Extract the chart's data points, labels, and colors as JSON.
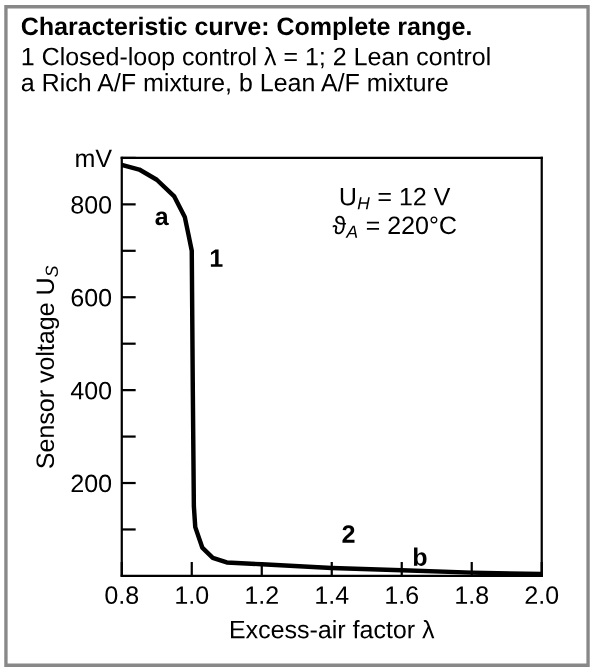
{
  "chart_data": {
    "type": "line",
    "title": "Characteristic curve: Complete range.",
    "subtitle": "1 Closed-loop control λ = 1; 2 Lean control\na Rich A/F mixture, b Lean A/F mixture",
    "xlabel": "Excess-air factor λ",
    "ylabel": "Sensor voltage U$_{S}$",
    "x": [
      0.8,
      0.85,
      0.9,
      0.95,
      0.98,
      0.99,
      1.0,
      1.003,
      1.006,
      1.01,
      1.03,
      1.06,
      1.1,
      1.2,
      1.4,
      1.6,
      1.8,
      2.0
    ],
    "series": [
      {
        "color": "#000000",
        "values": [
          885,
          875,
          853,
          817,
          773,
          737,
          700,
          400,
          150,
          105,
          61,
          39,
          29,
          25,
          17,
          12,
          7,
          4
        ]
      }
    ],
    "xlim": [
      0.8,
      2.0
    ],
    "xticks": [
      0.8,
      {
        "value": 1.0,
        "label": "1.0"
      },
      1.2,
      1.4,
      1.6,
      1.8,
      {
        "value": 2.0,
        "label": "2.0"
      }
    ],
    "ylim": [
      0,
      900
    ],
    "yticks": [
      {
        "value": 100,
        "label": null
      },
      200,
      {
        "value": 300,
        "label": null
      },
      400,
      {
        "value": 500,
        "label": null
      },
      600,
      {
        "value": 700,
        "label": null
      },
      800,
      {
        "value": 900,
        "label": "mV"
      }
    ],
    "annotations": [
      "a",
      "1",
      "2",
      "b",
      "U$_{H}$ = 12 V\nϑ$_{A}$ = 220°C"
    ],
    "grid": false,
    "legend": false,
    "marker": "none",
    "line_style": "solid"
  }
}
